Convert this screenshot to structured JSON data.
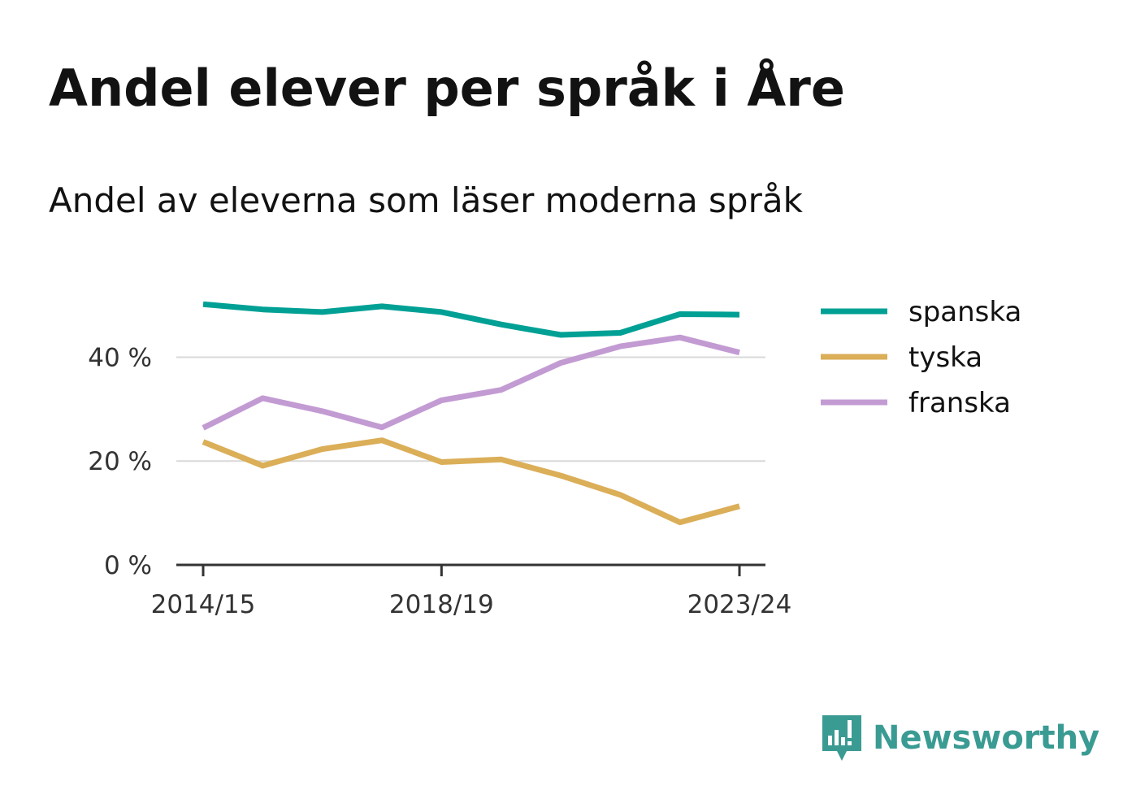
{
  "title": "Andel elever per språk i Åre",
  "subtitle": "Andel av eleverna som läser moderna språk",
  "brand": {
    "name": "Newsworthy",
    "icon": "newsworthy-logo-icon",
    "color": "#3a9b93"
  },
  "chart_data": {
    "type": "line",
    "x": [
      "2014/15",
      "2015/16",
      "2016/17",
      "2017/18",
      "2018/19",
      "2019/20",
      "2020/21",
      "2021/22",
      "2022/23",
      "2023/24"
    ],
    "x_tick_labels": [
      "2014/15",
      "2018/19",
      "2023/24"
    ],
    "y_ticks": [
      0,
      20,
      40
    ],
    "y_tick_labels": [
      "0 %",
      "20 %",
      "40 %"
    ],
    "ylim": [
      0,
      50
    ],
    "grid": true,
    "legend_position": "right",
    "xlabel": "",
    "ylabel": "",
    "series": [
      {
        "name": "spanska",
        "color": "#00a095",
        "values": [
          50.2,
          49.2,
          48.7,
          49.8,
          48.7,
          46.3,
          44.3,
          44.7,
          48.3,
          48.2
        ]
      },
      {
        "name": "tyska",
        "color": "#dbae58",
        "values": [
          23.7,
          19.1,
          22.3,
          24.0,
          19.8,
          20.3,
          17.2,
          13.5,
          8.2,
          11.3
        ]
      },
      {
        "name": "franska",
        "color": "#c39bd3",
        "values": [
          26.4,
          32.1,
          29.6,
          26.5,
          31.7,
          33.7,
          38.9,
          42.1,
          43.8,
          40.9
        ]
      }
    ]
  }
}
